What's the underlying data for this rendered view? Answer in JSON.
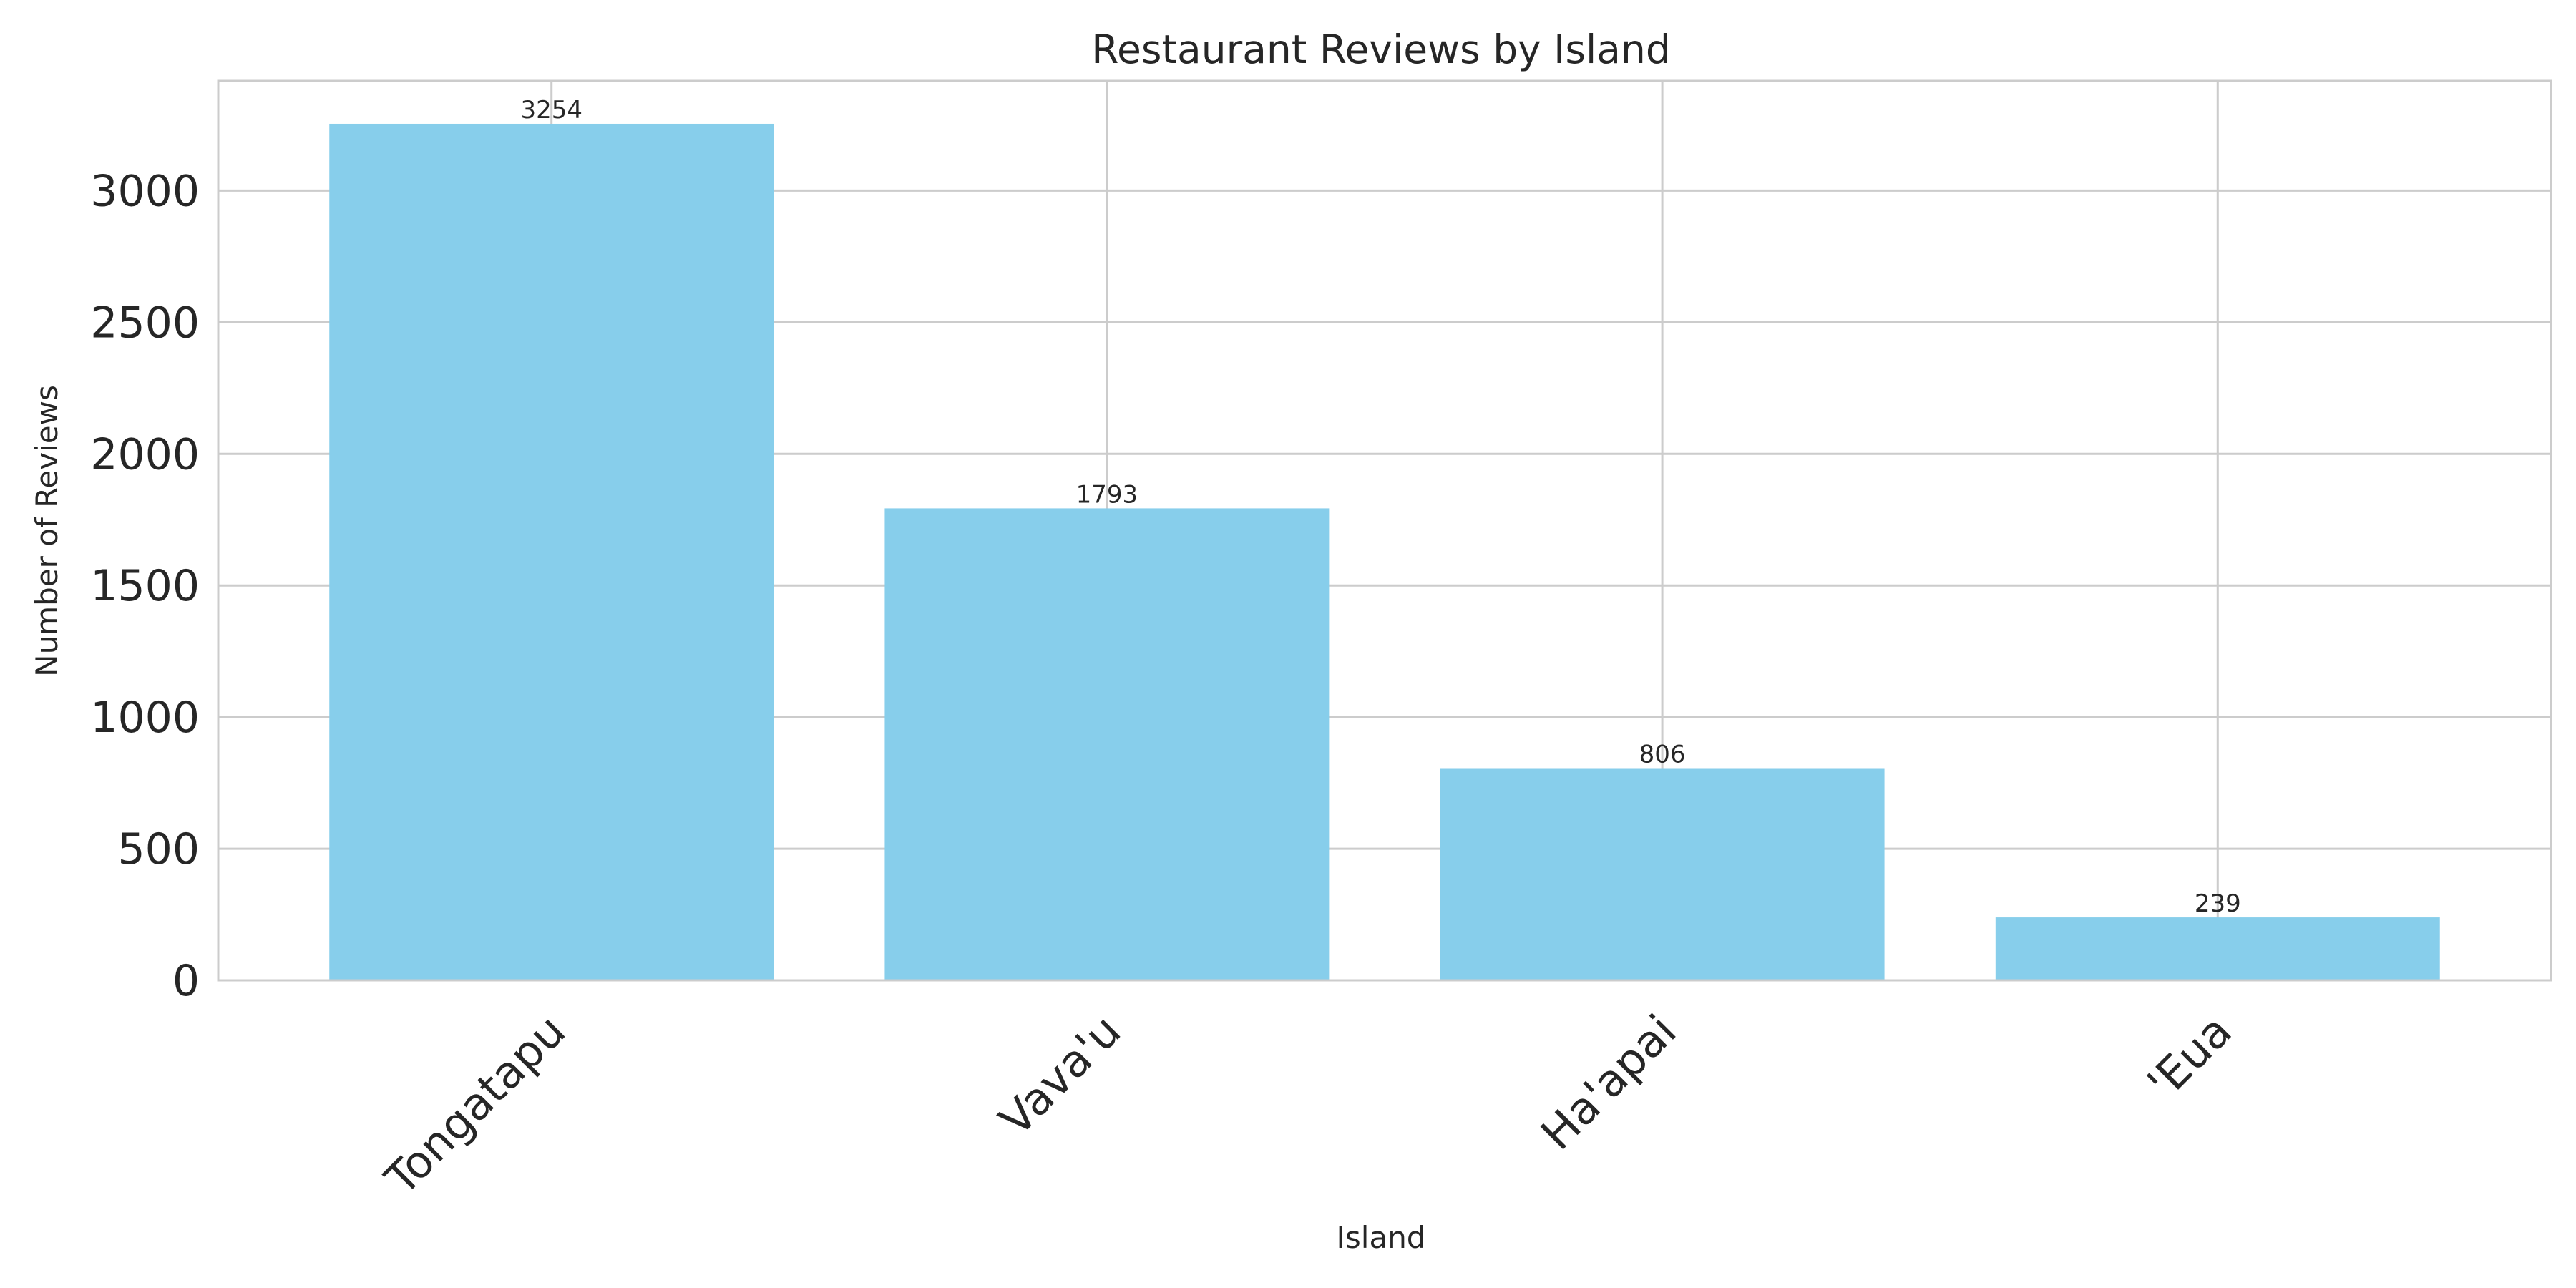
{
  "chart_data": {
    "type": "bar",
    "title": "Restaurant Reviews by Island",
    "xlabel": "Island",
    "ylabel": "Number of Reviews",
    "categories": [
      "Tongatapu",
      "Vava'u",
      "Ha'apai",
      "'Eua"
    ],
    "values": [
      3254,
      1793,
      806,
      239
    ],
    "data_labels": [
      "3254",
      "1793",
      "806",
      "239"
    ],
    "yticks": [
      0,
      500,
      1000,
      1500,
      2000,
      2500,
      3000
    ],
    "ytick_labels": [
      "0",
      "500",
      "1000",
      "1500",
      "2000",
      "2500",
      "3000"
    ],
    "ylim": [
      0,
      3417
    ],
    "grid": true,
    "bar_color": "#87ceeb"
  }
}
